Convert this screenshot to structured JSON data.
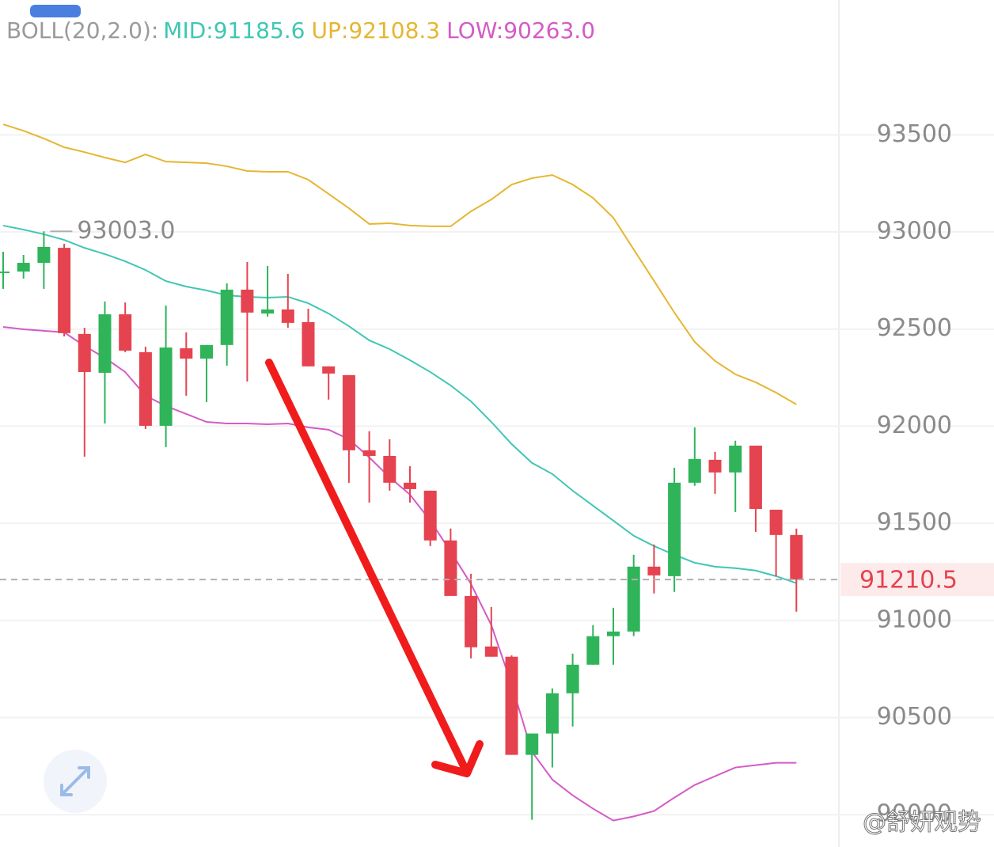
{
  "chart_data": {
    "type": "candlestick",
    "indicator": "BOLL(20,2.0):",
    "ylim": [
      89850,
      94190
    ],
    "yticks": [
      90000,
      90500,
      91000,
      91500,
      92000,
      92500,
      93000,
      93500
    ],
    "grid": true,
    "up_color": "#2fb45a",
    "down_color": "#e5434f",
    "high_marker": {
      "value": 93003.0,
      "label": "93003.0",
      "index": 2
    },
    "last_price": 91210.5,
    "watermark": "@舒妍观势",
    "candles": [
      {
        "open": 92788,
        "high": 92898,
        "low": 92707,
        "close": 92796
      },
      {
        "open": 92796,
        "high": 92882,
        "low": 92760,
        "close": 92841
      },
      {
        "open": 92841,
        "high": 93003,
        "low": 92707,
        "close": 92923
      },
      {
        "open": 92918,
        "high": 92939,
        "low": 92462,
        "close": 92479
      },
      {
        "open": 92475,
        "high": 92507,
        "low": 91843,
        "close": 92279
      },
      {
        "open": 92275,
        "high": 92642,
        "low": 92014,
        "close": 92576
      },
      {
        "open": 92576,
        "high": 92637,
        "low": 92381,
        "close": 92389
      },
      {
        "open": 92381,
        "high": 92409,
        "low": 91986,
        "close": 92002
      },
      {
        "open": 92002,
        "high": 92621,
        "low": 91892,
        "close": 92405
      },
      {
        "open": 92401,
        "high": 92483,
        "low": 92157,
        "close": 92348
      },
      {
        "open": 92348,
        "high": 92418,
        "low": 92124,
        "close": 92418
      },
      {
        "open": 92418,
        "high": 92735,
        "low": 92312,
        "close": 92703
      },
      {
        "open": 92703,
        "high": 92845,
        "low": 92230,
        "close": 92585
      },
      {
        "open": 92580,
        "high": 92825,
        "low": 92564,
        "close": 92601
      },
      {
        "open": 92601,
        "high": 92784,
        "low": 92507,
        "close": 92532
      },
      {
        "open": 92536,
        "high": 92605,
        "low": 92308,
        "close": 92308
      },
      {
        "open": 92308,
        "high": 92308,
        "low": 92137,
        "close": 92271
      },
      {
        "open": 92263,
        "high": 92263,
        "low": 91709,
        "close": 91876
      },
      {
        "open": 91876,
        "high": 91974,
        "low": 91607,
        "close": 91847
      },
      {
        "open": 91847,
        "high": 91933,
        "low": 91668,
        "close": 91709
      },
      {
        "open": 91709,
        "high": 91794,
        "low": 91607,
        "close": 91676
      },
      {
        "open": 91668,
        "high": 91668,
        "low": 91383,
        "close": 91412
      },
      {
        "open": 91412,
        "high": 91473,
        "low": 91126,
        "close": 91126
      },
      {
        "open": 91126,
        "high": 91240,
        "low": 90805,
        "close": 90862
      },
      {
        "open": 90866,
        "high": 91069,
        "low": 90813,
        "close": 90813
      },
      {
        "open": 90813,
        "high": 90821,
        "low": 90308,
        "close": 90308
      },
      {
        "open": 90308,
        "high": 90418,
        "low": 89974,
        "close": 90418
      },
      {
        "open": 90418,
        "high": 90650,
        "low": 90243,
        "close": 90625
      },
      {
        "open": 90625,
        "high": 90829,
        "low": 90454,
        "close": 90772
      },
      {
        "open": 90772,
        "high": 90976,
        "low": 90772,
        "close": 90919
      },
      {
        "open": 90919,
        "high": 91065,
        "low": 90772,
        "close": 90943
      },
      {
        "open": 90943,
        "high": 91338,
        "low": 90919,
        "close": 91277
      },
      {
        "open": 91277,
        "high": 91391,
        "low": 91139,
        "close": 91232
      },
      {
        "open": 91228,
        "high": 91786,
        "low": 91147,
        "close": 91709
      },
      {
        "open": 91709,
        "high": 91994,
        "low": 91693,
        "close": 91831
      },
      {
        "open": 91827,
        "high": 91868,
        "low": 91652,
        "close": 91762
      },
      {
        "open": 91762,
        "high": 91925,
        "low": 91558,
        "close": 91900
      },
      {
        "open": 91900,
        "high": 91900,
        "low": 91456,
        "close": 91574
      },
      {
        "open": 91570,
        "high": 91570,
        "low": 91228,
        "close": 91440
      },
      {
        "open": 91440,
        "high": 91473,
        "low": 91045,
        "close": 91210.5
      }
    ],
    "series": [
      {
        "label": "MID:91185.6",
        "color": "#3fc7b4",
        "values": [
          93033,
          93012,
          92988,
          92959,
          92918,
          92886,
          92849,
          92804,
          92747,
          92719,
          92699,
          92674,
          92666,
          92662,
          92666,
          92633,
          92580,
          92515,
          92442,
          92397,
          92340,
          92279,
          92210,
          92128,
          92022,
          91908,
          91811,
          91754,
          91668,
          91591,
          91514,
          91436,
          91383,
          91338,
          91297,
          91277,
          91269,
          91257,
          91228,
          91192
        ]
      },
      {
        "label": "UP:92108.3",
        "color": "#e6b632",
        "values": [
          93554,
          93521,
          93481,
          93436,
          93411,
          93383,
          93358,
          93399,
          93362,
          93358,
          93354,
          93338,
          93314,
          93310,
          93310,
          93269,
          93196,
          93122,
          93041,
          93045,
          93033,
          93029,
          93029,
          93106,
          93167,
          93244,
          93277,
          93293,
          93244,
          93175,
          93073,
          92910,
          92748,
          92585,
          92434,
          92336,
          92267,
          92226,
          92173,
          92112
        ]
      },
      {
        "label": "LOW:90263.0",
        "color": "#d45bc6",
        "values": [
          92511,
          92499,
          92491,
          92483,
          92413,
          92352,
          92279,
          92157,
          92104,
          92063,
          92022,
          92014,
          92014,
          92010,
          92014,
          91994,
          91982,
          91933,
          91839,
          91737,
          91648,
          91514,
          91355,
          91188,
          90976,
          90670,
          90324,
          90181,
          90100,
          90031,
          89970,
          89991,
          90019,
          90088,
          90153,
          90198,
          90243,
          90255,
          90267,
          90267
        ]
      }
    ]
  }
}
